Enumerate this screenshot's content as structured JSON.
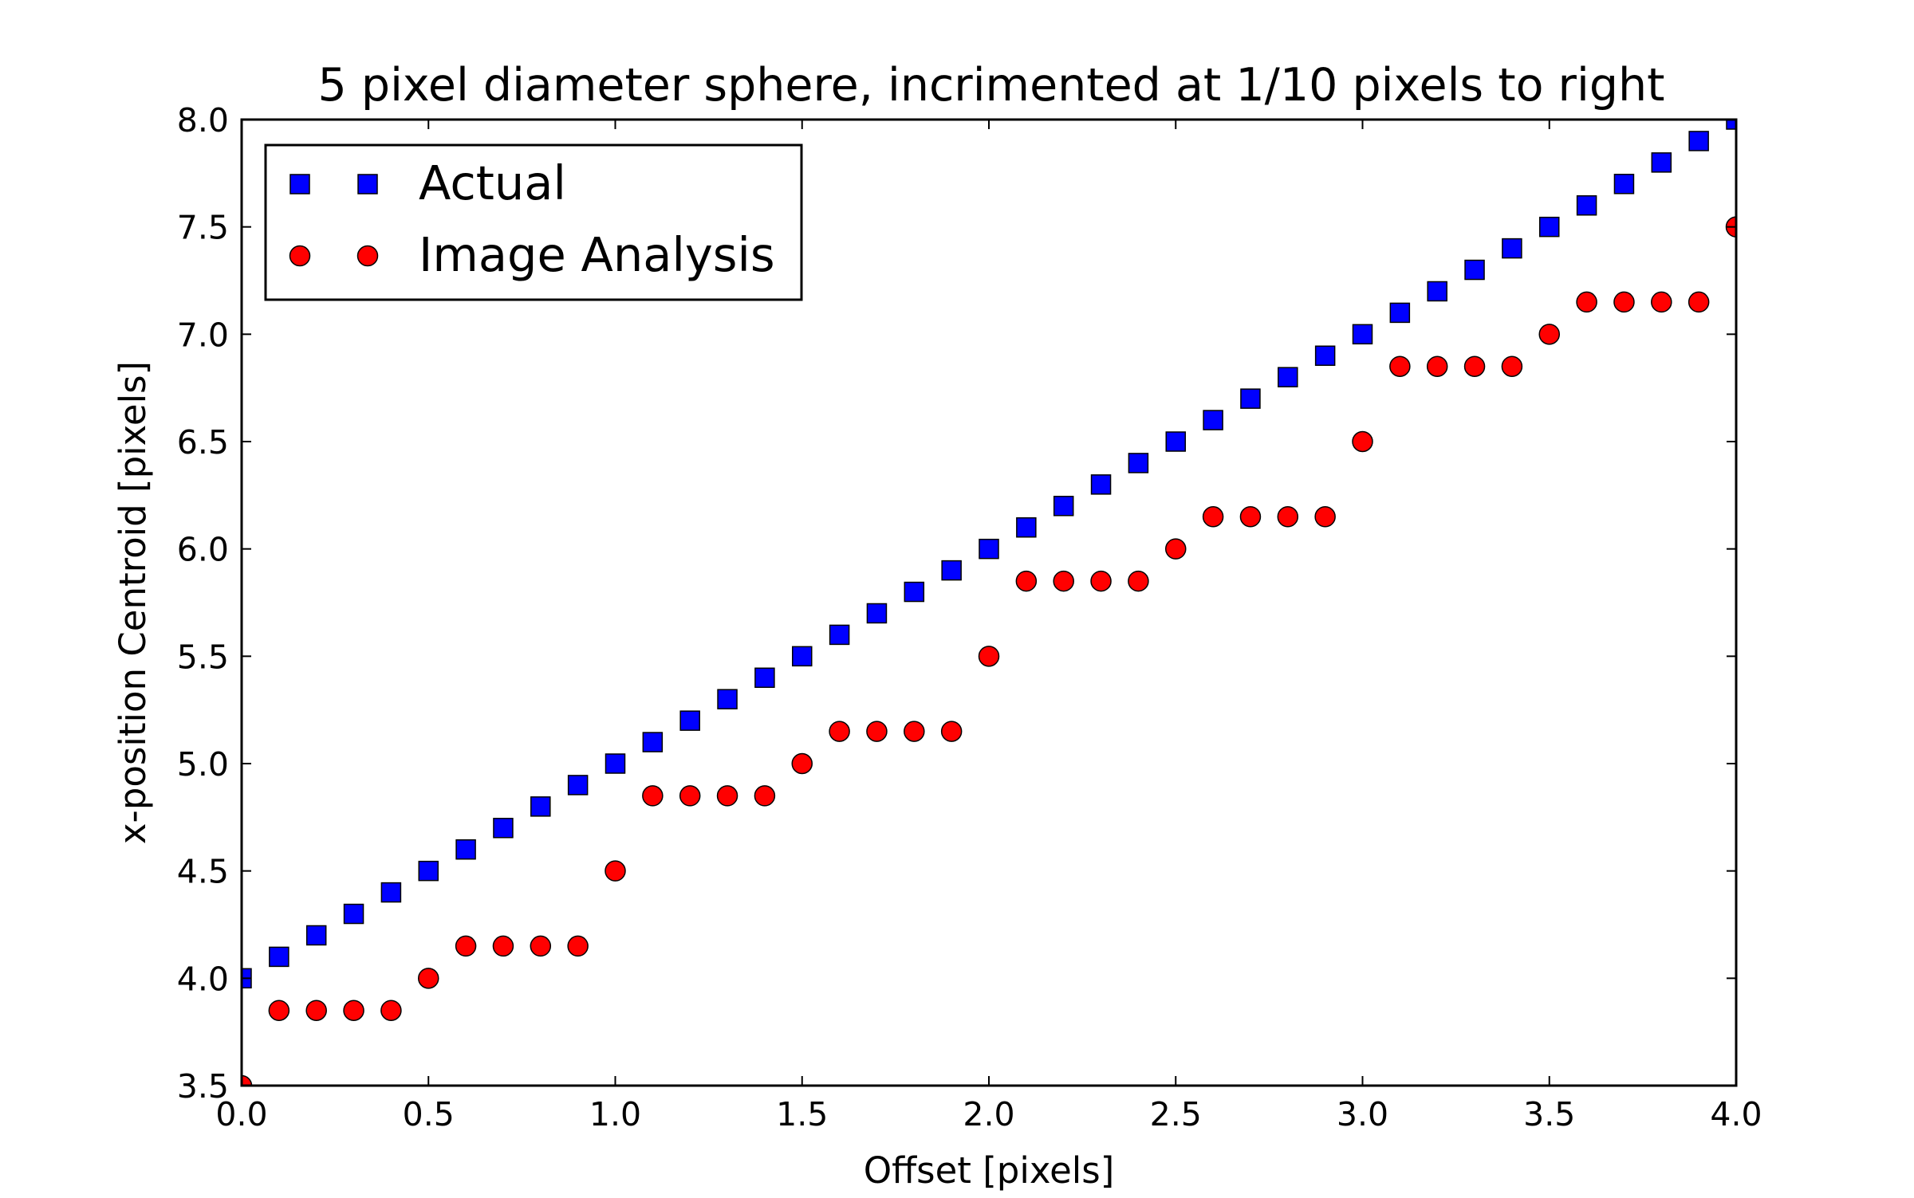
{
  "chart_data": {
    "type": "scatter",
    "title": "5 pixel diameter sphere, incrimented at 1/10 pixels to right",
    "xlabel": "Offset [pixels]",
    "ylabel": "x-position Centroid [pixels]",
    "xlim": [
      0.0,
      4.0
    ],
    "ylim": [
      3.5,
      8.0
    ],
    "xticks": [
      "0.0",
      "0.5",
      "1.0",
      "1.5",
      "2.0",
      "2.5",
      "3.0",
      "3.5",
      "4.0"
    ],
    "yticks": [
      "3.5",
      "4.0",
      "4.5",
      "5.0",
      "5.5",
      "6.0",
      "6.5",
      "7.0",
      "7.5",
      "8.0"
    ],
    "grid": false,
    "legend_position": "top-left",
    "x": [
      0.0,
      0.1,
      0.2,
      0.3,
      0.4,
      0.5,
      0.6,
      0.7,
      0.8,
      0.9,
      1.0,
      1.1,
      1.2,
      1.3,
      1.4,
      1.5,
      1.6,
      1.7,
      1.8,
      1.9,
      2.0,
      2.1,
      2.2,
      2.3,
      2.4,
      2.5,
      2.6,
      2.7,
      2.8,
      2.9,
      3.0,
      3.1,
      3.2,
      3.3,
      3.4,
      3.5,
      3.6,
      3.7,
      3.8,
      3.9,
      4.0
    ],
    "series": [
      {
        "name": "Actual",
        "marker": "square",
        "color": "#0000ff",
        "values": [
          4.0,
          4.1,
          4.2,
          4.3,
          4.4,
          4.5,
          4.6,
          4.7,
          4.8,
          4.9,
          5.0,
          5.1,
          5.2,
          5.3,
          5.4,
          5.5,
          5.6,
          5.7,
          5.8,
          5.9,
          6.0,
          6.1,
          6.2,
          6.3,
          6.4,
          6.5,
          6.6,
          6.7,
          6.8,
          6.9,
          7.0,
          7.1,
          7.2,
          7.3,
          7.4,
          7.5,
          7.6,
          7.7,
          7.8,
          7.9,
          8.0
        ]
      },
      {
        "name": "Image Analysis",
        "marker": "circle",
        "color": "#ff0000",
        "values": [
          3.5,
          3.85,
          3.85,
          3.85,
          3.85,
          4.0,
          4.15,
          4.15,
          4.15,
          4.15,
          4.5,
          4.85,
          4.85,
          4.85,
          4.85,
          5.0,
          5.15,
          5.15,
          5.15,
          5.15,
          5.5,
          5.85,
          5.85,
          5.85,
          5.85,
          6.0,
          6.15,
          6.15,
          6.15,
          6.15,
          6.5,
          6.85,
          6.85,
          6.85,
          6.85,
          7.0,
          7.15,
          7.15,
          7.15,
          7.15,
          7.5
        ]
      }
    ]
  }
}
